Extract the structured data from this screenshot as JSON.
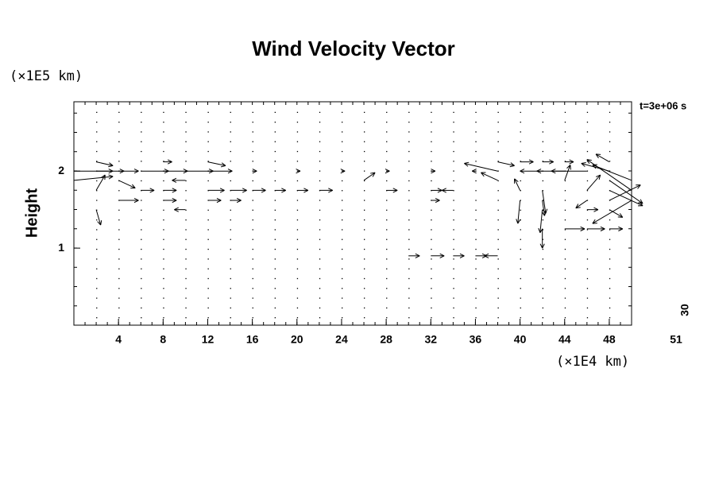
{
  "chart_data": {
    "type": "quiver",
    "title": "Wind Velocity Vector",
    "y_unit_label": "(×1E5 km)",
    "y_label": "Height",
    "x_unit_label": "(×1E4 km)",
    "time_label": "t=3e+06 s",
    "corner_labels": [
      "51",
      "30"
    ],
    "xlim": [
      0,
      50
    ],
    "ylim": [
      0,
      2.9
    ],
    "xticks": [
      4,
      8,
      12,
      16,
      20,
      24,
      28,
      32,
      36,
      40,
      44,
      48
    ],
    "yticks": [
      1,
      2
    ],
    "color": "#000000",
    "x": [
      0,
      2,
      4,
      6,
      8,
      10,
      12,
      16,
      20,
      24,
      28,
      32,
      36,
      38,
      42,
      44,
      46,
      48,
      2,
      8,
      12,
      38,
      40,
      42,
      44,
      48,
      0,
      4,
      10,
      26,
      38,
      44,
      48,
      50,
      2,
      6,
      8,
      12,
      14,
      16,
      18,
      20,
      22,
      28,
      32,
      34,
      40,
      42,
      46,
      48,
      50,
      4,
      8,
      12,
      14,
      32,
      40,
      42,
      46,
      48,
      50,
      2,
      10,
      42,
      46,
      48,
      44,
      46,
      48,
      42,
      30,
      32,
      34,
      36,
      38
    ],
    "y": [
      2,
      2,
      2,
      2,
      2,
      2,
      2,
      2,
      2,
      2,
      2,
      2,
      2,
      2,
      2,
      2,
      2,
      2,
      2.12,
      2.12,
      2.12,
      2.12,
      2.12,
      2.12,
      2.12,
      2.12,
      1.88,
      1.88,
      1.88,
      1.88,
      1.88,
      1.88,
      1.88,
      1.88,
      1.75,
      1.75,
      1.75,
      1.75,
      1.75,
      1.75,
      1.75,
      1.75,
      1.75,
      1.75,
      1.75,
      1.75,
      1.75,
      1.75,
      1.75,
      1.75,
      1.75,
      1.62,
      1.62,
      1.62,
      1.62,
      1.62,
      1.62,
      1.62,
      1.62,
      1.62,
      1.62,
      1.5,
      1.5,
      1.5,
      1.5,
      1.5,
      1.25,
      1.25,
      1.25,
      1.25,
      0.9,
      0.9,
      0.9,
      0.9,
      0.9
    ],
    "u": [
      3.5,
      2.5,
      1.8,
      2.5,
      2.2,
      2.5,
      2.2,
      0.4,
      0.3,
      0.3,
      0.3,
      0.4,
      -0.3,
      -3,
      -2,
      -1.2,
      -4.5,
      -2.5,
      1.5,
      0.8,
      1.6,
      1.5,
      1.2,
      1,
      0.8,
      -1.2,
      3.5,
      1.5,
      -1.2,
      1,
      -1.5,
      0.5,
      3,
      -3.5,
      0.8,
      1.2,
      1.2,
      1.5,
      1.5,
      1.2,
      1,
      1,
      1.2,
      1,
      1,
      -1,
      -0.5,
      0.3,
      1.2,
      3,
      -4,
      1.8,
      1.2,
      1.2,
      1,
      0.8,
      -0.2,
      0.2,
      -1,
      2.8,
      -3.5,
      0.4,
      -1,
      -0.2,
      1,
      1.2,
      1.8,
      1.6,
      1.2,
      0,
      1,
      1.2,
      1,
      1,
      -1.2
    ],
    "v": [
      0,
      0,
      0,
      0,
      0,
      0,
      0,
      0,
      0,
      0,
      0,
      0,
      0,
      0.1,
      0,
      0,
      0,
      0.1,
      -0.05,
      0,
      -0.05,
      -0.05,
      0,
      0,
      0,
      0.1,
      0.05,
      -0.1,
      0,
      0.1,
      0.1,
      0.2,
      -0.3,
      0.2,
      0.2,
      0,
      0,
      0,
      0,
      0,
      0,
      0,
      0,
      0,
      0,
      0,
      0.15,
      -0.3,
      0.2,
      -0.2,
      0.4,
      0,
      0,
      0,
      0,
      0,
      -0.3,
      -0.2,
      -0.1,
      0.2,
      -0.3,
      -0.2,
      0,
      -0.3,
      0,
      -0.1,
      0,
      0,
      0,
      -0.25,
      0,
      0,
      0,
      0,
      0
    ]
  }
}
